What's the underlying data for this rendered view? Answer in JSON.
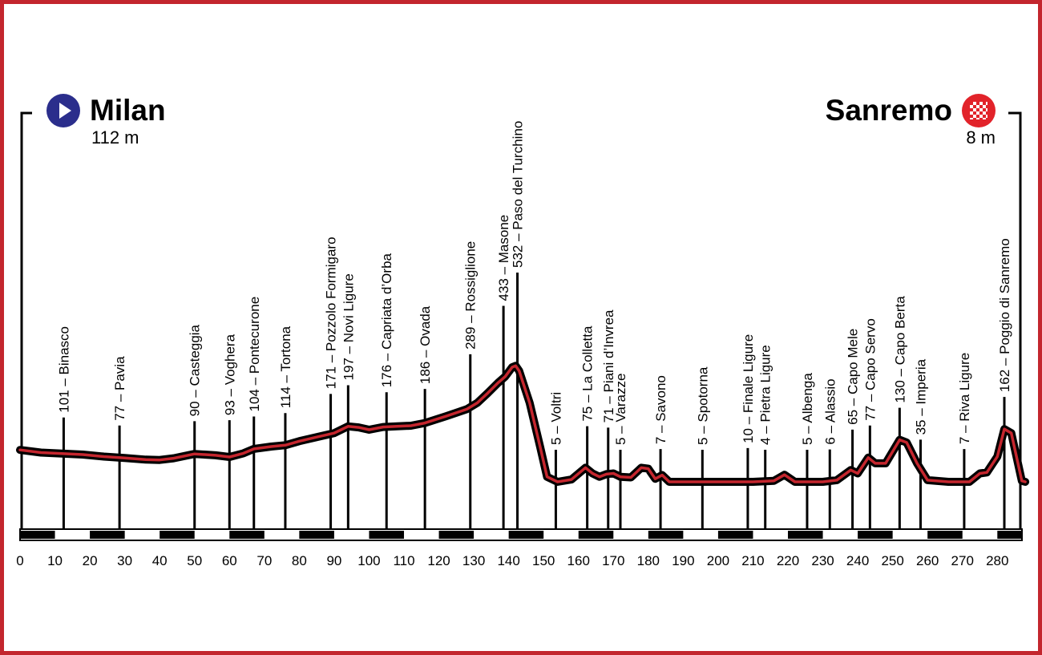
{
  "start": {
    "city": "Milan",
    "altitude": "112 m"
  },
  "finish": {
    "city": "Sanremo",
    "altitude": "8 m"
  },
  "colors": {
    "frame": "#c3262e",
    "profile_inner": "#c4262e",
    "profile_outer": "#000000",
    "start_icon": "#2b2e8c",
    "finish_icon": "#e2232a"
  },
  "icons": {
    "start": "play-circle-icon",
    "finish": "checkered-flag-icon"
  },
  "chart_data": {
    "type": "line",
    "title": "",
    "xlabel": "",
    "ylabel": "",
    "xlim": [
      0,
      288
    ],
    "ylim": [
      0,
      560
    ],
    "grid": false,
    "x_ticks": [
      0,
      10,
      20,
      30,
      40,
      50,
      60,
      70,
      80,
      90,
      100,
      110,
      120,
      130,
      140,
      150,
      160,
      170,
      180,
      190,
      200,
      210,
      220,
      230,
      240,
      250,
      260,
      270,
      280
    ],
    "profile": [
      [
        0,
        100
      ],
      [
        6,
        92
      ],
      [
        12,
        89
      ],
      [
        18,
        86
      ],
      [
        24,
        80
      ],
      [
        30,
        76
      ],
      [
        36,
        71
      ],
      [
        40,
        70
      ],
      [
        44,
        75
      ],
      [
        50,
        88
      ],
      [
        56,
        84
      ],
      [
        60,
        79
      ],
      [
        64,
        90
      ],
      [
        67,
        103
      ],
      [
        72,
        110
      ],
      [
        76,
        114
      ],
      [
        80,
        126
      ],
      [
        85,
        138
      ],
      [
        90,
        150
      ],
      [
        92,
        160
      ],
      [
        94,
        170
      ],
      [
        97,
        167
      ],
      [
        100,
        160
      ],
      [
        104,
        168
      ],
      [
        108,
        170
      ],
      [
        112,
        172
      ],
      [
        116,
        180
      ],
      [
        122,
        200
      ],
      [
        128,
        221
      ],
      [
        131,
        240
      ],
      [
        134,
        269
      ],
      [
        137,
        300
      ],
      [
        139,
        318
      ],
      [
        141,
        346
      ],
      [
        142,
        350
      ],
      [
        143,
        335
      ],
      [
        146,
        240
      ],
      [
        149,
        110
      ],
      [
        151,
        20
      ],
      [
        154,
        5
      ],
      [
        158,
        12
      ],
      [
        162,
        47
      ],
      [
        164,
        30
      ],
      [
        166,
        20
      ],
      [
        168,
        28
      ],
      [
        170,
        30
      ],
      [
        172,
        20
      ],
      [
        175,
        18
      ],
      [
        178,
        47
      ],
      [
        180,
        44
      ],
      [
        182,
        14
      ],
      [
        184,
        25
      ],
      [
        186,
        5
      ],
      [
        190,
        5
      ],
      [
        200,
        5
      ],
      [
        210,
        5
      ],
      [
        216,
        8
      ],
      [
        219,
        26
      ],
      [
        222,
        5
      ],
      [
        230,
        5
      ],
      [
        234,
        10
      ],
      [
        238,
        40
      ],
      [
        240,
        30
      ],
      [
        243,
        77
      ],
      [
        245,
        60
      ],
      [
        248,
        60
      ],
      [
        252,
        130
      ],
      [
        254,
        122
      ],
      [
        257,
        60
      ],
      [
        260,
        10
      ],
      [
        266,
        5
      ],
      [
        272,
        5
      ],
      [
        275,
        30
      ],
      [
        277,
        33
      ],
      [
        280,
        80
      ],
      [
        282,
        162
      ],
      [
        284,
        150
      ],
      [
        287,
        8
      ],
      [
        288,
        5
      ]
    ],
    "waypoints": [
      {
        "km": 12.5,
        "label": "101 – Binasco"
      },
      {
        "km": 28.5,
        "label": "77 – Pavia"
      },
      {
        "km": 50,
        "label": "90 – Casteggia"
      },
      {
        "km": 60,
        "label": "93 – Voghera"
      },
      {
        "km": 67,
        "label": "104 – Pontecurone"
      },
      {
        "km": 76,
        "label": "114 – Tortona"
      },
      {
        "km": 89,
        "label": "171 – Pozzolo Formigaro"
      },
      {
        "km": 94,
        "label": "197 – Novi Ligure"
      },
      {
        "km": 105,
        "label": "176 – Capriata d’Orba"
      },
      {
        "km": 116,
        "label": "186 – Ovada"
      },
      {
        "km": 129,
        "label": "289 – Rossiglione"
      },
      {
        "km": 138.5,
        "label": "433 – Masone"
      },
      {
        "km": 142.5,
        "label": "532 – Paso del Turchino"
      },
      {
        "km": 153.5,
        "label": "5 – Voltri"
      },
      {
        "km": 162.5,
        "label": "75 – La Colletta"
      },
      {
        "km": 168.5,
        "label": "71 – Piani d’Invrea"
      },
      {
        "km": 172,
        "label": "5 – Varazze"
      },
      {
        "km": 183.5,
        "label": "7 – Savono"
      },
      {
        "km": 195.5,
        "label": "5 – Spotorna"
      },
      {
        "km": 208.5,
        "label": "10 – Finale Ligure"
      },
      {
        "km": 213.5,
        "label": "4 – Pietra Ligure"
      },
      {
        "km": 225.5,
        "label": "5 – Albenga"
      },
      {
        "km": 232,
        "label": "6 – Alassio"
      },
      {
        "km": 238.5,
        "label": "65 – Capo Mele"
      },
      {
        "km": 243.5,
        "label": "77 – Capo Servo"
      },
      {
        "km": 252,
        "label": "130 – Capo Berta"
      },
      {
        "km": 258,
        "label": "35 – Imperia"
      },
      {
        "km": 270.5,
        "label": "7 – Riva Ligure"
      },
      {
        "km": 282,
        "label": "162 – Poggio di Sanremo"
      }
    ]
  }
}
